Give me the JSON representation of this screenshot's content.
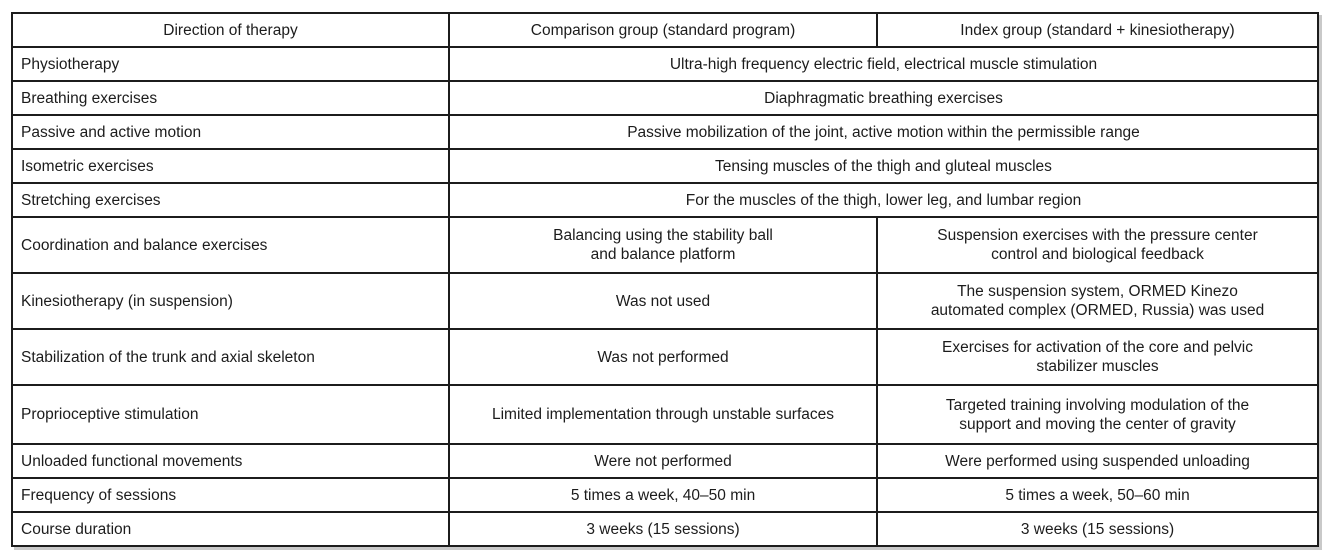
{
  "table": {
    "colors": {
      "border": "#1c1c1c",
      "text": "#1c1c1c",
      "background": "#ffffff"
    },
    "columns": [
      "Direction of therapy",
      "Comparison group (standard program)",
      "Index group (standard + kinesiotherapy)"
    ],
    "rows": [
      {
        "direction": "Physiotherapy",
        "merged": "Ultra-high frequency electric field, electrical muscle stimulation"
      },
      {
        "direction": "Breathing exercises",
        "merged": "Diaphragmatic breathing exercises"
      },
      {
        "direction": "Passive and active motion",
        "merged": "Passive mobilization of the joint, active motion within the permissible range"
      },
      {
        "direction": "Isometric exercises",
        "merged": "Tensing muscles of the thigh and gluteal muscles"
      },
      {
        "direction": "Stretching exercises",
        "merged": "For the muscles of the thigh, lower leg, and lumbar region"
      },
      {
        "direction": "Coordination and balance exercises",
        "comparison": "Balancing using the stability ball\nand balance platform",
        "index": "Suspension exercises with the pressure center\ncontrol and biological feedback"
      },
      {
        "direction": "Kinesiotherapy (in suspension)",
        "comparison": "Was not used",
        "index": "The suspension system, ORMED Kinezo\nautomated complex (ORMED, Russia) was used"
      },
      {
        "direction": "Stabilization of the trunk and axial skeleton",
        "comparison": "Was not performed",
        "index": "Exercises for activation of the core and pelvic\nstabilizer muscles"
      },
      {
        "direction": "Proprioceptive stimulation",
        "comparison": "Limited implementation through unstable surfaces",
        "index": "Targeted training involving modulation of the\nsupport and moving the center of gravity"
      },
      {
        "direction": "Unloaded functional movements",
        "comparison": "Were not performed",
        "index": "Were performed using suspended unloading"
      },
      {
        "direction": "Frequency of sessions",
        "comparison": "5 times a week, 40–50 min",
        "index": "5 times a week, 50–60 min"
      },
      {
        "direction": "Course duration",
        "comparison": "3 weeks (15 sessions)",
        "index": "3 weeks (15 sessions)"
      }
    ]
  }
}
